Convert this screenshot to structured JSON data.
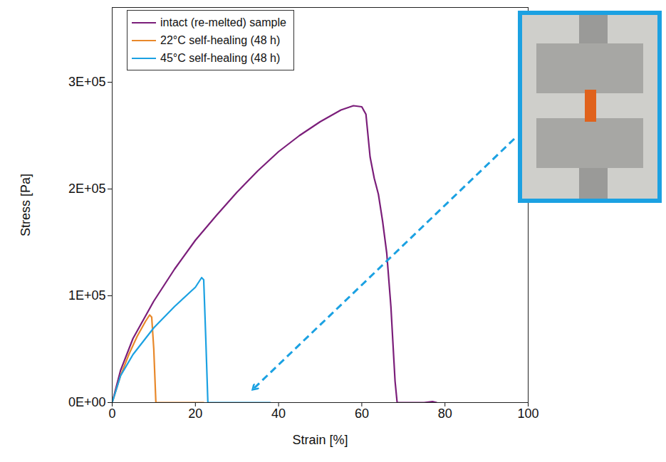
{
  "chart_data": {
    "type": "line",
    "x_label": "Strain [%]",
    "y_label": "Stress [Pa]",
    "xlim": [
      0,
      100
    ],
    "xticks": [
      0,
      20,
      40,
      60,
      80,
      100
    ],
    "ylim": [
      0,
      370000
    ],
    "yticks": [
      {
        "value": 0,
        "label": "0E+00"
      },
      {
        "value": 100000,
        "label": "1E+05"
      },
      {
        "value": 200000,
        "label": "2E+05"
      },
      {
        "value": 300000,
        "label": "3E+05"
      }
    ],
    "legend": "top-left",
    "series": [
      {
        "name": "intact (re-melted) sample",
        "color": "#7b1e7a",
        "x": [
          0,
          2,
          5,
          10,
          15,
          20,
          25,
          30,
          35,
          40,
          45,
          50,
          55,
          58,
          60,
          61,
          62,
          63,
          64,
          65,
          66,
          67,
          68,
          68.5,
          70,
          75,
          77,
          78
        ],
        "values": [
          0,
          30000,
          60000,
          95000,
          125000,
          152000,
          175000,
          197000,
          217000,
          235000,
          250000,
          263000,
          274000,
          278000,
          277000,
          270000,
          230000,
          210000,
          195000,
          170000,
          140000,
          90000,
          20000,
          0,
          0,
          0,
          1000,
          0
        ]
      },
      {
        "name": "22°C self-healing (48 h)",
        "color": "#e8882a",
        "x": [
          0,
          2,
          4,
          6,
          8,
          9,
          9.5,
          10,
          10.5,
          15,
          22
        ],
        "values": [
          0,
          25000,
          45000,
          62000,
          76000,
          82000,
          80000,
          50000,
          0,
          0,
          0
        ]
      },
      {
        "name": "45°C self-healing (48 h)",
        "color": "#1ba1e2",
        "x": [
          0,
          2,
          5,
          10,
          15,
          20,
          21.5,
          22,
          22.5,
          23,
          30,
          38
        ],
        "values": [
          0,
          25000,
          45000,
          70000,
          90000,
          108000,
          117000,
          115000,
          60000,
          0,
          0,
          0
        ]
      }
    ]
  }
}
